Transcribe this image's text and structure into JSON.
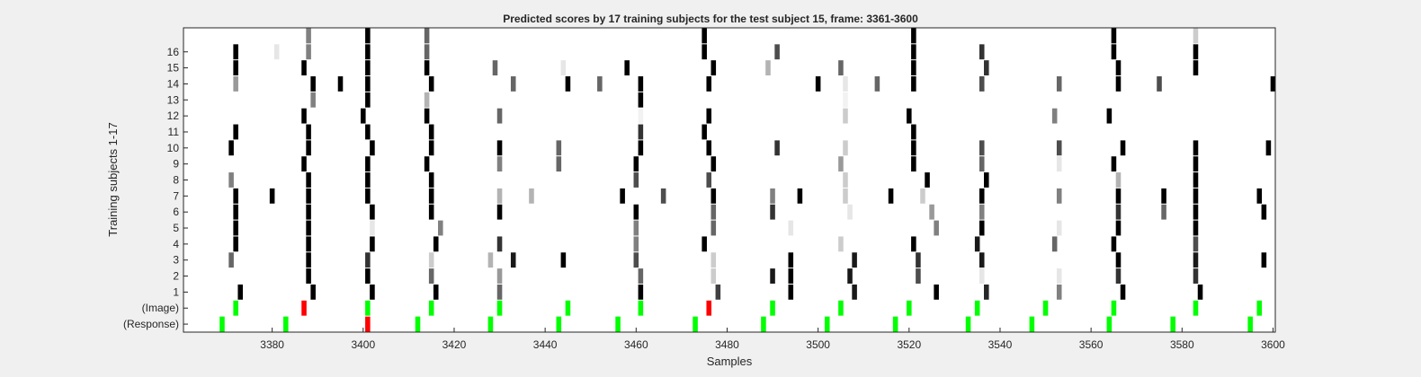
{
  "chart_data": {
    "type": "heatmap",
    "title": "Predicted scores by 17 training subjects for the test subject 15, frame: 3361-3600",
    "xlabel": "Samples",
    "ylabel": "Training subjects 1-17",
    "xlim": [
      3361,
      3600
    ],
    "x_ticks": [
      3380,
      3400,
      3420,
      3440,
      3460,
      3480,
      3500,
      3520,
      3540,
      3560,
      3580,
      3600
    ],
    "rows": [
      "(Response)",
      "(Image)",
      "1",
      "2",
      "3",
      "4",
      "5",
      "6",
      "7",
      "8",
      "9",
      "10",
      "11",
      "12",
      "13",
      "14",
      "15",
      "16",
      ""
    ],
    "y_tick_labels": [
      "(Response)",
      "(Image)",
      "1",
      "2",
      "3",
      "4",
      "5",
      "6",
      "7",
      "8",
      "9",
      "10",
      "11",
      "12",
      "13",
      "14",
      "15",
      "16"
    ],
    "colors": {
      "background": "#ffffff",
      "correct_marker": "#00ff00",
      "error_marker": "#ff0000",
      "score": "#000000"
    },
    "response_markers": [
      {
        "x": 3369,
        "c": "green"
      },
      {
        "x": 3383,
        "c": "green"
      },
      {
        "x": 3401,
        "c": "red"
      },
      {
        "x": 3412,
        "c": "green"
      },
      {
        "x": 3428,
        "c": "green"
      },
      {
        "x": 3443,
        "c": "green"
      },
      {
        "x": 3456,
        "c": "green"
      },
      {
        "x": 3473,
        "c": "green"
      },
      {
        "x": 3488,
        "c": "green"
      },
      {
        "x": 3502,
        "c": "green"
      },
      {
        "x": 3517,
        "c": "green"
      },
      {
        "x": 3533,
        "c": "green"
      },
      {
        "x": 3547,
        "c": "green"
      },
      {
        "x": 3564,
        "c": "green"
      },
      {
        "x": 3578,
        "c": "green"
      },
      {
        "x": 3595,
        "c": "green"
      }
    ],
    "image_markers": [
      {
        "x": 3372,
        "c": "green"
      },
      {
        "x": 3387,
        "c": "red"
      },
      {
        "x": 3401,
        "c": "green"
      },
      {
        "x": 3415,
        "c": "green"
      },
      {
        "x": 3430,
        "c": "green"
      },
      {
        "x": 3445,
        "c": "green"
      },
      {
        "x": 3461,
        "c": "green"
      },
      {
        "x": 3476,
        "c": "red"
      },
      {
        "x": 3490,
        "c": "green"
      },
      {
        "x": 3505,
        "c": "green"
      },
      {
        "x": 3520,
        "c": "green"
      },
      {
        "x": 3535,
        "c": "green"
      },
      {
        "x": 3550,
        "c": "green"
      },
      {
        "x": 3565,
        "c": "green"
      },
      {
        "x": 3583,
        "c": "green"
      },
      {
        "x": 3597,
        "c": "green"
      }
    ],
    "subject_scores": {
      "1": [
        [
          3373,
          1
        ],
        [
          3389,
          1
        ],
        [
          3402,
          1
        ],
        [
          3416,
          1
        ],
        [
          3430,
          0.6
        ],
        [
          3461,
          1
        ],
        [
          3478,
          0.75
        ],
        [
          3494,
          1
        ],
        [
          3508,
          0.9
        ],
        [
          3526,
          1
        ],
        [
          3537,
          0.85
        ],
        [
          3553,
          0.5
        ],
        [
          3567,
          1
        ],
        [
          3584,
          1
        ]
      ],
      "2": [
        [
          3388,
          1
        ],
        [
          3401,
          1
        ],
        [
          3415,
          0.6
        ],
        [
          3430,
          0.4
        ],
        [
          3461,
          0.6
        ],
        [
          3477,
          0.2
        ],
        [
          3490,
          0.9
        ],
        [
          3494,
          1
        ],
        [
          3507,
          0.9
        ],
        [
          3522,
          0.7
        ],
        [
          3536,
          0.1
        ],
        [
          3553,
          0.1
        ],
        [
          3566,
          0.8
        ],
        [
          3583,
          0.8
        ]
      ],
      "3": [
        [
          3371,
          0.6
        ],
        [
          3388,
          1
        ],
        [
          3401,
          0.8
        ],
        [
          3415,
          0.2
        ],
        [
          3428,
          0.3
        ],
        [
          3433,
          0.9
        ],
        [
          3444,
          1
        ],
        [
          3460,
          0.7
        ],
        [
          3477,
          0.2
        ],
        [
          3494,
          1
        ],
        [
          3508,
          0.9
        ],
        [
          3522,
          0.8
        ],
        [
          3536,
          0.9
        ],
        [
          3566,
          1
        ],
        [
          3583,
          0.9
        ],
        [
          3598,
          1
        ]
      ],
      "4": [
        [
          3372,
          1
        ],
        [
          3388,
          1
        ],
        [
          3402,
          1
        ],
        [
          3416,
          1
        ],
        [
          3430,
          0.8
        ],
        [
          3460,
          0.5
        ],
        [
          3475,
          1
        ],
        [
          3505,
          0.2
        ],
        [
          3521,
          1
        ],
        [
          3535,
          0.9
        ],
        [
          3552,
          0.6
        ],
        [
          3565,
          1
        ],
        [
          3583,
          0.7
        ]
      ],
      "5": [
        [
          3372,
          1
        ],
        [
          3388,
          1
        ],
        [
          3402,
          0.1
        ],
        [
          3417,
          0.5
        ],
        [
          3460,
          0.5
        ],
        [
          3477,
          0.6
        ],
        [
          3494,
          0.1
        ],
        [
          3526,
          0.5
        ],
        [
          3536,
          1
        ],
        [
          3553,
          0.1
        ],
        [
          3566,
          1
        ],
        [
          3583,
          1
        ]
      ],
      "6": [
        [
          3372,
          1
        ],
        [
          3388,
          1
        ],
        [
          3402,
          1
        ],
        [
          3415,
          1
        ],
        [
          3430,
          1
        ],
        [
          3460,
          1
        ],
        [
          3477,
          0.6
        ],
        [
          3490,
          0.8
        ],
        [
          3507,
          0.1
        ],
        [
          3525,
          0.4
        ],
        [
          3536,
          0.5
        ],
        [
          3566,
          0.8
        ],
        [
          3576,
          0.6
        ],
        [
          3583,
          1
        ],
        [
          3598,
          1
        ]
      ],
      "7": [
        [
          3372,
          1
        ],
        [
          3380,
          1
        ],
        [
          3388,
          1
        ],
        [
          3401,
          1
        ],
        [
          3415,
          1
        ],
        [
          3430,
          0.3
        ],
        [
          3437,
          0.3
        ],
        [
          3457,
          1
        ],
        [
          3466,
          0.7
        ],
        [
          3477,
          1
        ],
        [
          3490,
          0.5
        ],
        [
          3496,
          1
        ],
        [
          3506,
          0.2
        ],
        [
          3516,
          1
        ],
        [
          3523,
          0.2
        ],
        [
          3536,
          1
        ],
        [
          3553,
          0.5
        ],
        [
          3566,
          1
        ],
        [
          3576,
          1
        ],
        [
          3583,
          1
        ],
        [
          3597,
          1
        ]
      ],
      "8": [
        [
          3371,
          0.5
        ],
        [
          3388,
          1
        ],
        [
          3401,
          1
        ],
        [
          3415,
          1
        ],
        [
          3460,
          0.7
        ],
        [
          3476,
          0.7
        ],
        [
          3506,
          0.2
        ],
        [
          3524,
          1
        ],
        [
          3537,
          1
        ],
        [
          3566,
          0.3
        ],
        [
          3583,
          1
        ]
      ],
      "9": [
        [
          3387,
          1
        ],
        [
          3401,
          1
        ],
        [
          3414,
          1
        ],
        [
          3430,
          0.5
        ],
        [
          3443,
          0.6
        ],
        [
          3460,
          1
        ],
        [
          3477,
          1
        ],
        [
          3505,
          0.4
        ],
        [
          3521,
          1
        ],
        [
          3536,
          0.6
        ],
        [
          3553,
          0.1
        ],
        [
          3565,
          1
        ],
        [
          3583,
          1
        ]
      ],
      "10": [
        [
          3371,
          1
        ],
        [
          3388,
          1
        ],
        [
          3402,
          1
        ],
        [
          3415,
          1
        ],
        [
          3430,
          1
        ],
        [
          3443,
          0.6
        ],
        [
          3461,
          1
        ],
        [
          3476,
          1
        ],
        [
          3491,
          0.8
        ],
        [
          3506,
          0.2
        ],
        [
          3521,
          1
        ],
        [
          3536,
          0.7
        ],
        [
          3553,
          0.7
        ],
        [
          3567,
          1
        ],
        [
          3583,
          1
        ],
        [
          3599,
          1
        ]
      ],
      "11": [
        [
          3372,
          1
        ],
        [
          3388,
          1
        ],
        [
          3401,
          1
        ],
        [
          3415,
          1
        ],
        [
          3461,
          0.8
        ],
        [
          3475,
          1
        ],
        [
          3521,
          1
        ]
      ],
      "12": [
        [
          3387,
          1
        ],
        [
          3400,
          1
        ],
        [
          3414,
          1
        ],
        [
          3430,
          0.6
        ],
        [
          3461,
          0.05
        ],
        [
          3476,
          1
        ],
        [
          3506,
          0.2
        ],
        [
          3520,
          1
        ],
        [
          3552,
          0.5
        ],
        [
          3564,
          1
        ]
      ],
      "13": [
        [
          3389,
          0.5
        ],
        [
          3401,
          1
        ],
        [
          3414,
          0.3
        ],
        [
          3461,
          1
        ],
        [
          3506,
          0.05
        ]
      ],
      "14": [
        [
          3372,
          0.4
        ],
        [
          3389,
          1
        ],
        [
          3395,
          1
        ],
        [
          3401,
          1
        ],
        [
          3415,
          1
        ],
        [
          3433,
          0.6
        ],
        [
          3445,
          1
        ],
        [
          3452,
          0.6
        ],
        [
          3461,
          1
        ],
        [
          3476,
          1
        ],
        [
          3500,
          1
        ],
        [
          3506,
          0.1
        ],
        [
          3513,
          0.6
        ],
        [
          3521,
          1
        ],
        [
          3536,
          0.7
        ],
        [
          3553,
          0.6
        ],
        [
          3566,
          1
        ],
        [
          3575,
          0.7
        ],
        [
          3600,
          1
        ]
      ],
      "15": [
        [
          3372,
          1
        ],
        [
          3387,
          1
        ],
        [
          3401,
          1
        ],
        [
          3414,
          1
        ],
        [
          3429,
          0.6
        ],
        [
          3444,
          0.1
        ],
        [
          3458,
          1
        ],
        [
          3477,
          1
        ],
        [
          3489,
          0.3
        ],
        [
          3505,
          0.6
        ],
        [
          3521,
          1
        ],
        [
          3537,
          0.8
        ],
        [
          3566,
          1
        ],
        [
          3583,
          1
        ]
      ],
      "16": [
        [
          3372,
          1
        ],
        [
          3381,
          0.1
        ],
        [
          3388,
          0.5
        ],
        [
          3401,
          1
        ],
        [
          3414,
          0.6
        ],
        [
          3475,
          1
        ],
        [
          3491,
          0.7
        ],
        [
          3521,
          1
        ],
        [
          3536,
          0.8
        ],
        [
          3565,
          1
        ],
        [
          3583,
          1
        ]
      ],
      "": [
        [
          3388,
          0.5
        ],
        [
          3401,
          1
        ],
        [
          3414,
          0.6
        ],
        [
          3475,
          1
        ],
        [
          3521,
          1
        ],
        [
          3565,
          1
        ],
        [
          3583,
          0.2
        ]
      ]
    }
  }
}
